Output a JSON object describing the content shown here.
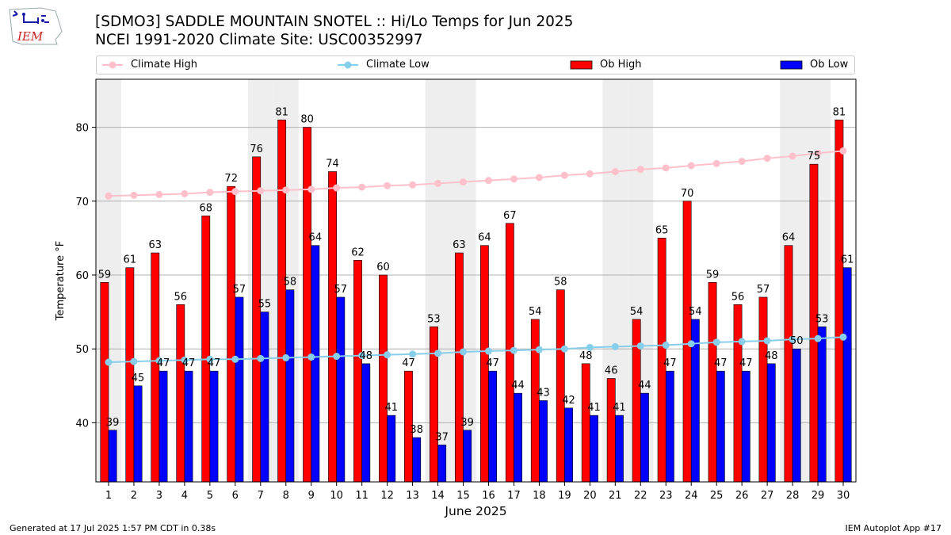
{
  "header": {
    "title_line1": "[SDMO3] SADDLE MOUNTAIN SNOTEL :: Hi/Lo Temps for Jun 2025",
    "title_line2": "NCEI 1991-2020 Climate Site: USC00352997",
    "logo_text": "IEM"
  },
  "footer": {
    "left": "Generated at 17 Jul 2025 1:57 PM CDT in 0.38s",
    "right": "IEM Autoplot App #17"
  },
  "colors": {
    "ob_high": "#ff0000",
    "ob_low": "#0000ff",
    "climate_high": "#ffc0cb",
    "climate_low": "#87ceeb",
    "weekend_shade": "#eeeeee"
  },
  "chart_data": {
    "type": "bar",
    "xlabel": "June 2025",
    "ylabel": "Temperature °F",
    "ylim": [
      32,
      86.5
    ],
    "yticks": [
      40,
      50,
      60,
      70,
      80
    ],
    "grid": true,
    "legend_position": "top",
    "categories": [
      "1",
      "2",
      "3",
      "4",
      "5",
      "6",
      "7",
      "8",
      "9",
      "10",
      "11",
      "12",
      "13",
      "14",
      "15",
      "16",
      "17",
      "18",
      "19",
      "20",
      "21",
      "22",
      "23",
      "24",
      "25",
      "26",
      "27",
      "28",
      "29",
      "30"
    ],
    "shaded_days": [
      1,
      7,
      8,
      14,
      15,
      21,
      22,
      28,
      29
    ],
    "series": [
      {
        "name": "Ob High",
        "kind": "bar",
        "values": [
          59,
          61,
          63,
          56,
          68,
          72,
          76,
          81,
          80,
          74,
          62,
          60,
          47,
          53,
          63,
          64,
          67,
          54,
          58,
          48,
          46,
          54,
          65,
          70,
          59,
          56,
          57,
          64,
          75,
          81
        ]
      },
      {
        "name": "Ob Low",
        "kind": "bar",
        "values": [
          39,
          45,
          47,
          47,
          47,
          57,
          55,
          58,
          64,
          57,
          48,
          41,
          38,
          37,
          39,
          47,
          44,
          43,
          42,
          41,
          41,
          44,
          47,
          54,
          47,
          47,
          48,
          50,
          53,
          61
        ]
      },
      {
        "name": "Climate High",
        "kind": "line",
        "values": [
          70.7,
          70.8,
          70.9,
          71.0,
          71.2,
          71.3,
          71.4,
          71.5,
          71.6,
          71.8,
          71.9,
          72.1,
          72.2,
          72.4,
          72.6,
          72.8,
          73.0,
          73.2,
          73.5,
          73.7,
          74.0,
          74.3,
          74.5,
          74.8,
          75.1,
          75.4,
          75.8,
          76.1,
          76.5,
          76.8
        ]
      },
      {
        "name": "Climate Low",
        "kind": "line",
        "values": [
          48.2,
          48.3,
          48.4,
          48.5,
          48.6,
          48.6,
          48.7,
          48.8,
          48.9,
          49.0,
          49.1,
          49.2,
          49.3,
          49.4,
          49.6,
          49.7,
          49.8,
          49.9,
          50.0,
          50.2,
          50.3,
          50.4,
          50.5,
          50.7,
          50.9,
          51.0,
          51.1,
          51.3,
          51.4,
          51.6
        ]
      }
    ]
  }
}
